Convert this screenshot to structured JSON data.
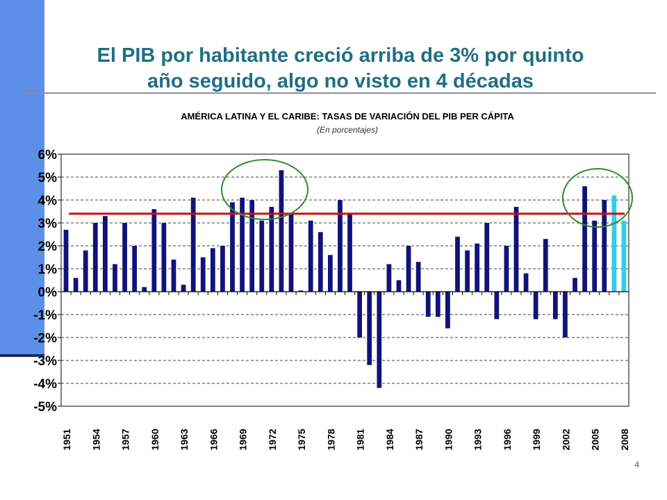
{
  "slide": {
    "title_line1": "El PIB por habitante creció arriba de 3% por quinto",
    "title_line2": "año seguido, algo no visto en 4 décadas",
    "page_number": "4",
    "accent_color": "#5b8fe8",
    "title_color": "#1f6e86"
  },
  "chart_data": {
    "type": "bar",
    "title": "AMÉRICA LATINA Y EL CARIBE: TASAS DE VARIACIÓN DEL PIB PER CÁPITA",
    "subtitle": "(En porcentajes)",
    "xlabel": "",
    "ylabel": "",
    "ylim": [
      -5,
      6
    ],
    "y_tick_labels": [
      "6%",
      "5%",
      "4%",
      "3%",
      "2%",
      "1%",
      "0%",
      "-1%",
      "-2%",
      "-3%",
      "-4%",
      "-5%"
    ],
    "x_tick_labels": [
      "1951",
      "1954",
      "1957",
      "1960",
      "1963",
      "1966",
      "1969",
      "1972",
      "1975",
      "1978",
      "1981",
      "1984",
      "1987",
      "1990",
      "1993",
      "1996",
      "1999",
      "2002",
      "2005",
      "2008"
    ],
    "grid": "horizontal dashed",
    "categories": [
      1951,
      1952,
      1953,
      1954,
      1955,
      1956,
      1957,
      1958,
      1959,
      1960,
      1961,
      1962,
      1963,
      1964,
      1965,
      1966,
      1967,
      1968,
      1969,
      1970,
      1971,
      1972,
      1973,
      1974,
      1975,
      1976,
      1977,
      1978,
      1979,
      1980,
      1981,
      1982,
      1983,
      1984,
      1985,
      1986,
      1987,
      1988,
      1989,
      1990,
      1991,
      1992,
      1993,
      1994,
      1995,
      1996,
      1997,
      1998,
      1999,
      2000,
      2001,
      2002,
      2003,
      2004,
      2005,
      2006,
      2007,
      2008
    ],
    "values": [
      2.7,
      0.6,
      1.8,
      3.0,
      3.3,
      1.2,
      3.0,
      2.0,
      0.2,
      3.6,
      3.0,
      1.4,
      0.3,
      4.1,
      1.5,
      1.9,
      2.0,
      3.9,
      4.1,
      4.0,
      3.1,
      3.7,
      5.3,
      3.4,
      0.05,
      3.1,
      2.6,
      1.6,
      4.0,
      3.4,
      -2.0,
      -3.2,
      -4.2,
      1.2,
      0.5,
      2.0,
      1.3,
      -1.1,
      -1.1,
      -1.6,
      2.4,
      1.8,
      2.1,
      3.0,
      -1.2,
      2.0,
      3.7,
      0.8,
      -1.2,
      2.3,
      -1.2,
      -2.0,
      0.6,
      4.6,
      3.1,
      4.0,
      4.2,
      3.1
    ],
    "bar_colors": {
      "default": "#12127a",
      "projected": "#33ccee"
    },
    "projected_years": [
      2007,
      2008
    ],
    "reference_line": {
      "value": 3.4,
      "color": "#cc1111"
    },
    "highlight_circle_color": "#2e8b2e"
  }
}
